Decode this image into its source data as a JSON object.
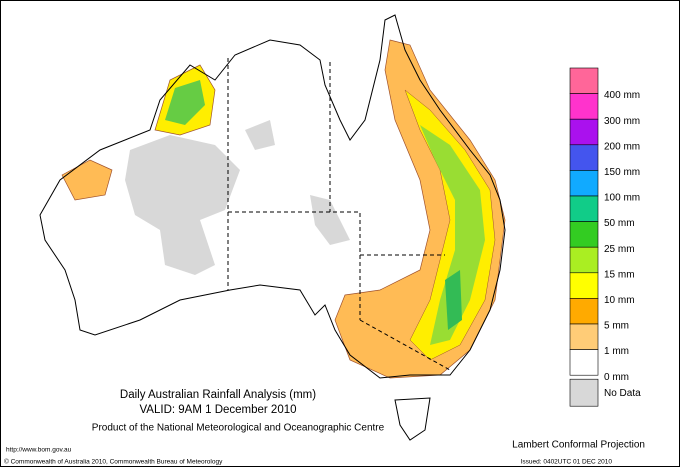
{
  "map": {
    "title": "Daily Australian Rainfall Analysis (mm)",
    "valid": "VALID: 9AM  1 December 2010",
    "product": "Product of the National Meteorological and Oceanographic Centre",
    "url": "http://www.bom.gov.au",
    "copyright": "© Commonwealth of Australia 2010, Commonwealth Bureau of Meteorology",
    "projection": "Lambert Conformal Projection",
    "issued": "Issued: 0402UTC 01 DEC 2010",
    "legend": {
      "labels": [
        "400 mm",
        "300 mm",
        "200 mm",
        "150 mm",
        "100 mm",
        "50 mm",
        "25 mm",
        "15 mm",
        "10 mm",
        "5 mm",
        "1 mm",
        "0 mm",
        "No Data"
      ],
      "colors": [
        "#ff6699",
        "#ff33cc",
        "#aa11ee",
        "#4455ee",
        "#11aaff",
        "#11cc88",
        "#33cc22",
        "#aaee22",
        "#ffff00",
        "#ffaa00",
        "#ffcc77",
        "#ffffff",
        "#d8d8d8"
      ]
    }
  }
}
